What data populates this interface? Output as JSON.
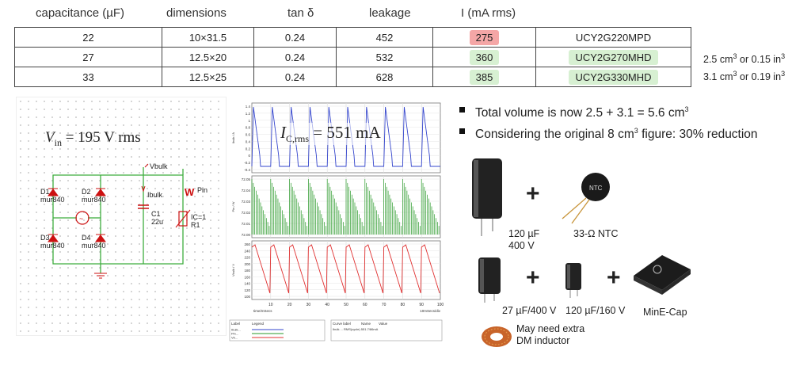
{
  "table": {
    "headers": [
      "capacitance (µF)",
      "dimensions",
      "tan δ",
      "leakage",
      "I (mA rms)"
    ],
    "rows": [
      {
        "cap": "22",
        "dim": "10×31.5",
        "tan": "0.24",
        "leak": "452",
        "irms": "275",
        "part": "UCY2G220MPD",
        "status": "red"
      },
      {
        "cap": "27",
        "dim": "12.5×20",
        "tan": "0.24",
        "leak": "532",
        "irms": "360",
        "part": "UCY2G270MHD",
        "status": "green"
      },
      {
        "cap": "33",
        "dim": "12.5×25",
        "tan": "0.24",
        "leak": "628",
        "irms": "385",
        "part": "UCY2G330MHD",
        "status": "green"
      }
    ],
    "notes": [
      {
        "a": "2.5 cm",
        "b": "3",
        "c": " or 0.15 in",
        "d": "3"
      },
      {
        "a": "3.1 cm",
        "b": "3",
        "c": " or 0.19 in",
        "d": "3"
      }
    ]
  },
  "colors": {
    "red_highlight": "#f4a6a6",
    "green_highlight": "#d7f0d2",
    "trace_blue": "#3344cc",
    "trace_green": "#2a9a2a",
    "trace_red": "#e03030",
    "wire_green": "#3fae3f",
    "diode_red": "#cc1111"
  },
  "schematic": {
    "vin_text": "= 195 V rms",
    "vin_symbol": "V",
    "vin_sub": "in",
    "vbulk": "Vbulk",
    "ibulk": "Ibulk",
    "w": "W",
    "pin": "Pin",
    "d1": "D1",
    "d2": "D2",
    "d3": "D3",
    "d4": "D4",
    "part_d": "mur840",
    "c1": "C1",
    "c1v": "22u",
    "ic": "IC=1",
    "r1": "R1"
  },
  "scope": {
    "ic_symbol": "I",
    "ic_sub": "C,rms",
    "ic_value": " = 551 mA",
    "top_ticks": [
      "1.4",
      "1.2",
      "1",
      "0.8",
      "0.6",
      "0.4",
      "0.2",
      "0",
      "-0.2",
      "-0.4"
    ],
    "mid_ticks": [
      "72.05",
      "72.04",
      "72.03",
      "72.02",
      "72.01",
      "72.00"
    ],
    "bot_ticks": [
      "260",
      "240",
      "220",
      "200",
      "180",
      "160",
      "140",
      "120",
      "100"
    ],
    "x_ticks": [
      "10",
      "20",
      "30",
      "40",
      "50",
      "60",
      "70",
      "80",
      "90",
      "100"
    ],
    "top_axis": "Ibulk / A",
    "mid_axis": "Pin / W",
    "bot_axis": "Vbulk / V",
    "x_label": "time/mSecs",
    "x_scale": "10mSecs/div",
    "legend_label": "Label",
    "legend_legend": "Legend",
    "legend_items": [
      "Ibulk...",
      "Pin...",
      "Vb..."
    ],
    "curve_label": "Curve label",
    "curve_name": "Name",
    "curve_value": "Value",
    "curve_row": "Ibulk ... RMS(cycle)  551.7/86mA"
  },
  "bullets": {
    "b1_a": "Total volume is now 2.5 + 3.1 = 5.6 cm",
    "b1_sup": "3",
    "b2_a": "Considering the original 8 cm",
    "b2_sup": "3",
    "b2_b": " figure: 30% reduction"
  },
  "parts": {
    "cap120_l1": "120 µF",
    "cap120_l2": "400 V",
    "ntc": "33-Ω NTC",
    "ntc_mark": "NTC",
    "cap27": "27 µF/400 V",
    "cap120lv": "120 µF/160 V",
    "minecap": "MinE-Cap",
    "plus": "+",
    "inductor_l1": "May need extra",
    "inductor_l2": "DM inductor"
  }
}
